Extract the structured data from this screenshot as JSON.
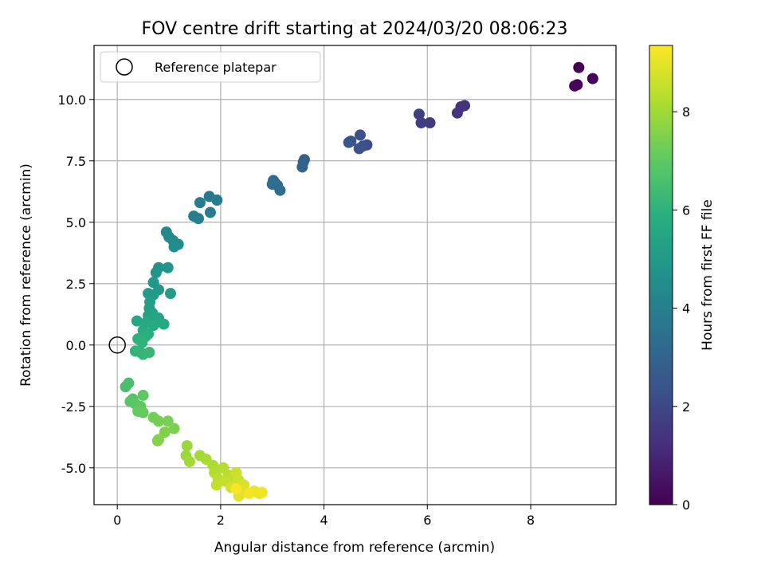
{
  "chart_data": {
    "type": "scatter",
    "title": "FOV centre drift starting at 2024/03/20 08:06:23",
    "xlabel": "Angular distance from reference (arcmin)",
    "ylabel": "Rotation from reference (arcmin)",
    "xlim": [
      -0.45,
      9.65
    ],
    "ylim": [
      -6.5,
      12.2
    ],
    "xticks": [
      0,
      2,
      4,
      6,
      8
    ],
    "yticks": [
      -5.0,
      -2.5,
      0.0,
      2.5,
      5.0,
      7.5,
      10.0
    ],
    "grid": true,
    "legend": {
      "placement": "upper-left",
      "entries": [
        "Reference platepar"
      ]
    },
    "reference_point": {
      "x": 0,
      "y": 0
    },
    "colorbar": {
      "label": "Hours from first FF file",
      "colormap": "viridis",
      "range": [
        0,
        9.35
      ],
      "ticks": [
        0,
        2,
        4,
        6,
        8
      ]
    },
    "points": [
      {
        "x": 8.93,
        "y": 11.3,
        "c": 0.0
      },
      {
        "x": 9.2,
        "y": 10.85,
        "c": 0.05
      },
      {
        "x": 8.9,
        "y": 10.6,
        "c": 0.1
      },
      {
        "x": 8.85,
        "y": 10.55,
        "c": 0.15
      },
      {
        "x": 6.72,
        "y": 9.75,
        "c": 1.3
      },
      {
        "x": 6.65,
        "y": 9.7,
        "c": 1.35
      },
      {
        "x": 6.58,
        "y": 9.45,
        "c": 1.4
      },
      {
        "x": 6.05,
        "y": 9.05,
        "c": 1.6
      },
      {
        "x": 5.88,
        "y": 9.05,
        "c": 1.65
      },
      {
        "x": 5.84,
        "y": 9.4,
        "c": 1.7
      },
      {
        "x": 4.83,
        "y": 8.15,
        "c": 2.2
      },
      {
        "x": 4.75,
        "y": 8.1,
        "c": 2.25
      },
      {
        "x": 4.7,
        "y": 8.55,
        "c": 2.3
      },
      {
        "x": 4.68,
        "y": 8.0,
        "c": 2.35
      },
      {
        "x": 4.52,
        "y": 8.3,
        "c": 2.4
      },
      {
        "x": 4.48,
        "y": 8.25,
        "c": 2.45
      },
      {
        "x": 3.62,
        "y": 7.55,
        "c": 2.85
      },
      {
        "x": 3.6,
        "y": 7.45,
        "c": 2.9
      },
      {
        "x": 3.58,
        "y": 7.25,
        "c": 2.95
      },
      {
        "x": 3.02,
        "y": 6.7,
        "c": 3.2
      },
      {
        "x": 3.05,
        "y": 6.6,
        "c": 3.25
      },
      {
        "x": 3.1,
        "y": 6.5,
        "c": 3.3
      },
      {
        "x": 3.15,
        "y": 6.3,
        "c": 3.35
      },
      {
        "x": 3.0,
        "y": 6.55,
        "c": 3.4
      },
      {
        "x": 1.78,
        "y": 6.05,
        "c": 3.75
      },
      {
        "x": 1.93,
        "y": 5.9,
        "c": 3.8
      },
      {
        "x": 1.6,
        "y": 5.8,
        "c": 3.85
      },
      {
        "x": 1.8,
        "y": 5.4,
        "c": 3.9
      },
      {
        "x": 1.48,
        "y": 5.25,
        "c": 3.95
      },
      {
        "x": 1.57,
        "y": 5.15,
        "c": 4.0
      },
      {
        "x": 0.95,
        "y": 4.6,
        "c": 4.3
      },
      {
        "x": 1.0,
        "y": 4.4,
        "c": 4.35
      },
      {
        "x": 1.08,
        "y": 4.25,
        "c": 4.4
      },
      {
        "x": 1.18,
        "y": 4.1,
        "c": 4.45
      },
      {
        "x": 1.1,
        "y": 4.0,
        "c": 4.5
      },
      {
        "x": 0.8,
        "y": 3.15,
        "c": 4.75
      },
      {
        "x": 0.98,
        "y": 3.15,
        "c": 4.8
      },
      {
        "x": 0.75,
        "y": 2.95,
        "c": 4.85
      },
      {
        "x": 0.7,
        "y": 2.55,
        "c": 4.9
      },
      {
        "x": 0.8,
        "y": 2.25,
        "c": 4.95
      },
      {
        "x": 0.6,
        "y": 2.1,
        "c": 5.0
      },
      {
        "x": 0.7,
        "y": 2.05,
        "c": 5.05
      },
      {
        "x": 1.03,
        "y": 2.1,
        "c": 5.1
      },
      {
        "x": 0.63,
        "y": 1.75,
        "c": 5.2
      },
      {
        "x": 0.62,
        "y": 1.5,
        "c": 5.25
      },
      {
        "x": 0.68,
        "y": 1.3,
        "c": 5.3
      },
      {
        "x": 0.6,
        "y": 1.2,
        "c": 5.35
      },
      {
        "x": 0.72,
        "y": 1.15,
        "c": 5.4
      },
      {
        "x": 0.8,
        "y": 1.1,
        "c": 5.45
      },
      {
        "x": 0.65,
        "y": 1.0,
        "c": 5.5
      },
      {
        "x": 0.38,
        "y": 0.98,
        "c": 5.55
      },
      {
        "x": 0.55,
        "y": 0.9,
        "c": 5.6
      },
      {
        "x": 0.9,
        "y": 0.85,
        "c": 5.65
      },
      {
        "x": 0.7,
        "y": 0.8,
        "c": 5.7
      },
      {
        "x": 0.5,
        "y": 0.6,
        "c": 5.75
      },
      {
        "x": 0.6,
        "y": 0.45,
        "c": 5.85
      },
      {
        "x": 0.55,
        "y": 0.35,
        "c": 5.9
      },
      {
        "x": 0.4,
        "y": 0.25,
        "c": 5.95
      },
      {
        "x": 0.48,
        "y": 0.1,
        "c": 6.0
      },
      {
        "x": 0.35,
        "y": -0.25,
        "c": 6.05
      },
      {
        "x": 0.45,
        "y": -0.3,
        "c": 6.1
      },
      {
        "x": 0.5,
        "y": -0.38,
        "c": 6.15
      },
      {
        "x": 0.62,
        "y": -0.3,
        "c": 6.2
      },
      {
        "x": 0.22,
        "y": -1.55,
        "c": 6.55
      },
      {
        "x": 0.16,
        "y": -1.7,
        "c": 6.6
      },
      {
        "x": 0.3,
        "y": -2.2,
        "c": 6.8
      },
      {
        "x": 0.25,
        "y": -2.3,
        "c": 6.85
      },
      {
        "x": 0.35,
        "y": -2.4,
        "c": 6.9
      },
      {
        "x": 0.5,
        "y": -2.05,
        "c": 6.95
      },
      {
        "x": 0.45,
        "y": -2.5,
        "c": 7.0
      },
      {
        "x": 0.4,
        "y": -2.7,
        "c": 7.05
      },
      {
        "x": 0.5,
        "y": -2.75,
        "c": 7.1
      },
      {
        "x": 0.7,
        "y": -2.95,
        "c": 7.3
      },
      {
        "x": 0.8,
        "y": -3.1,
        "c": 7.35
      },
      {
        "x": 0.98,
        "y": -3.1,
        "c": 7.4
      },
      {
        "x": 1.1,
        "y": -3.4,
        "c": 7.45
      },
      {
        "x": 0.92,
        "y": -3.55,
        "c": 7.5
      },
      {
        "x": 0.8,
        "y": -3.85,
        "c": 7.55
      },
      {
        "x": 0.78,
        "y": -3.9,
        "c": 7.6
      },
      {
        "x": 1.35,
        "y": -4.1,
        "c": 7.9
      },
      {
        "x": 1.33,
        "y": -4.5,
        "c": 7.95
      },
      {
        "x": 1.4,
        "y": -4.75,
        "c": 8.0
      },
      {
        "x": 1.6,
        "y": -4.5,
        "c": 8.05
      },
      {
        "x": 1.72,
        "y": -4.65,
        "c": 8.1
      },
      {
        "x": 1.85,
        "y": -4.9,
        "c": 8.2
      },
      {
        "x": 1.88,
        "y": -5.2,
        "c": 8.25
      },
      {
        "x": 2.05,
        "y": -5.0,
        "c": 8.3
      },
      {
        "x": 2.15,
        "y": -5.3,
        "c": 8.35
      },
      {
        "x": 1.95,
        "y": -5.45,
        "c": 8.4
      },
      {
        "x": 2.25,
        "y": -5.4,
        "c": 8.45
      },
      {
        "x": 1.92,
        "y": -5.7,
        "c": 8.5
      },
      {
        "x": 2.1,
        "y": -5.55,
        "c": 8.55
      },
      {
        "x": 2.3,
        "y": -5.2,
        "c": 8.6
      },
      {
        "x": 2.35,
        "y": -5.5,
        "c": 8.65
      },
      {
        "x": 2.2,
        "y": -5.8,
        "c": 8.75
      },
      {
        "x": 2.45,
        "y": -5.7,
        "c": 8.8
      },
      {
        "x": 2.38,
        "y": -5.95,
        "c": 8.85
      },
      {
        "x": 2.5,
        "y": -6.0,
        "c": 8.9
      },
      {
        "x": 2.35,
        "y": -6.15,
        "c": 8.95
      },
      {
        "x": 2.65,
        "y": -5.95,
        "c": 9.05
      },
      {
        "x": 2.75,
        "y": -6.05,
        "c": 9.1
      },
      {
        "x": 2.8,
        "y": -6.0,
        "c": 9.15
      },
      {
        "x": 2.55,
        "y": -6.05,
        "c": 9.2
      },
      {
        "x": 2.3,
        "y": -5.85,
        "c": 9.25
      }
    ]
  }
}
